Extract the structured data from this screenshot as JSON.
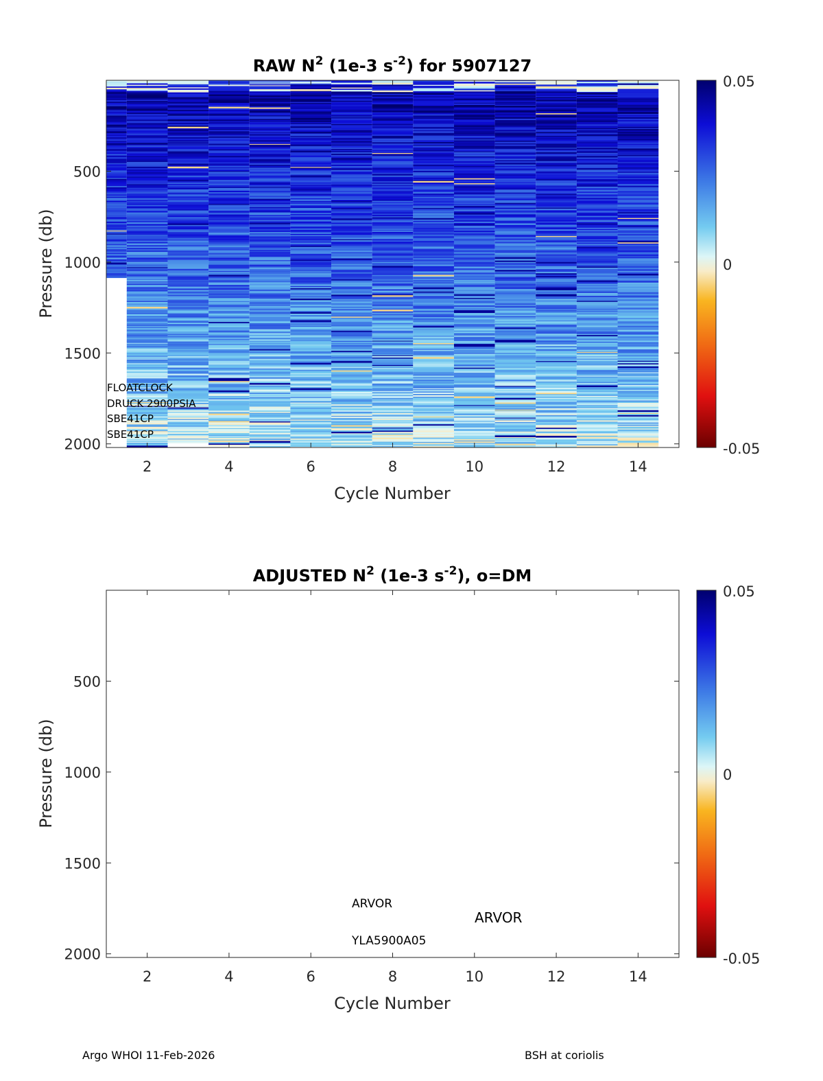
{
  "chart_data": [
    {
      "type": "heatmap",
      "title_prefix": "RAW N",
      "title_sup1": "2",
      "title_mid": " (1e-3 s",
      "title_sup2": "-2",
      "title_suffix": ") for 5907127",
      "xlabel": "Cycle Number",
      "ylabel": "Pressure (db)",
      "x_ticks": [
        "2",
        "4",
        "6",
        "8",
        "10",
        "12",
        "14"
      ],
      "y_ticks": [
        "500",
        "1000",
        "1500",
        "2000"
      ],
      "xlim": [
        1,
        15
      ],
      "ylim": [
        2020,
        0
      ],
      "y_direction": "reversed",
      "colorbar": {
        "ticks": [
          "0.05",
          "0",
          "-0.05"
        ],
        "range": [
          -0.05,
          0.05
        ]
      },
      "cycles": [
        1,
        2,
        3,
        4,
        5,
        6,
        7,
        8,
        9,
        10,
        11,
        12,
        13,
        14
      ],
      "max_pressure": [
        1080,
        2020,
        1990,
        2010,
        2020,
        2010,
        2020,
        2020,
        2020,
        2020,
        2020,
        2020,
        2020,
        2020
      ],
      "annotations": [
        "FLOATCLOCK",
        "DRUCK 2900PSIA",
        "SBE41CP",
        "SBE41CP"
      ]
    },
    {
      "type": "heatmap",
      "title_prefix": "ADJUSTED N",
      "title_sup1": "2",
      "title_mid": " (1e-3 s",
      "title_sup2": "-2",
      "title_suffix": "), o=DM",
      "xlabel": "Cycle Number",
      "ylabel": "Pressure (db)",
      "x_ticks": [
        "2",
        "4",
        "6",
        "8",
        "10",
        "12",
        "14"
      ],
      "y_ticks": [
        "500",
        "1000",
        "1500",
        "2000"
      ],
      "xlim": [
        1,
        15
      ],
      "ylim": [
        2020,
        0
      ],
      "y_direction": "reversed",
      "colorbar": {
        "ticks": [
          "0.05",
          "0",
          "-0.05"
        ],
        "range": [
          -0.05,
          0.05
        ]
      },
      "cycles": [],
      "annotations": [
        "ARVOR",
        "YLA5900A05",
        "ARVOR"
      ]
    }
  ],
  "footer": {
    "left": "Argo WHOI 11-Feb-2026",
    "right": "BSH at coriolis"
  }
}
